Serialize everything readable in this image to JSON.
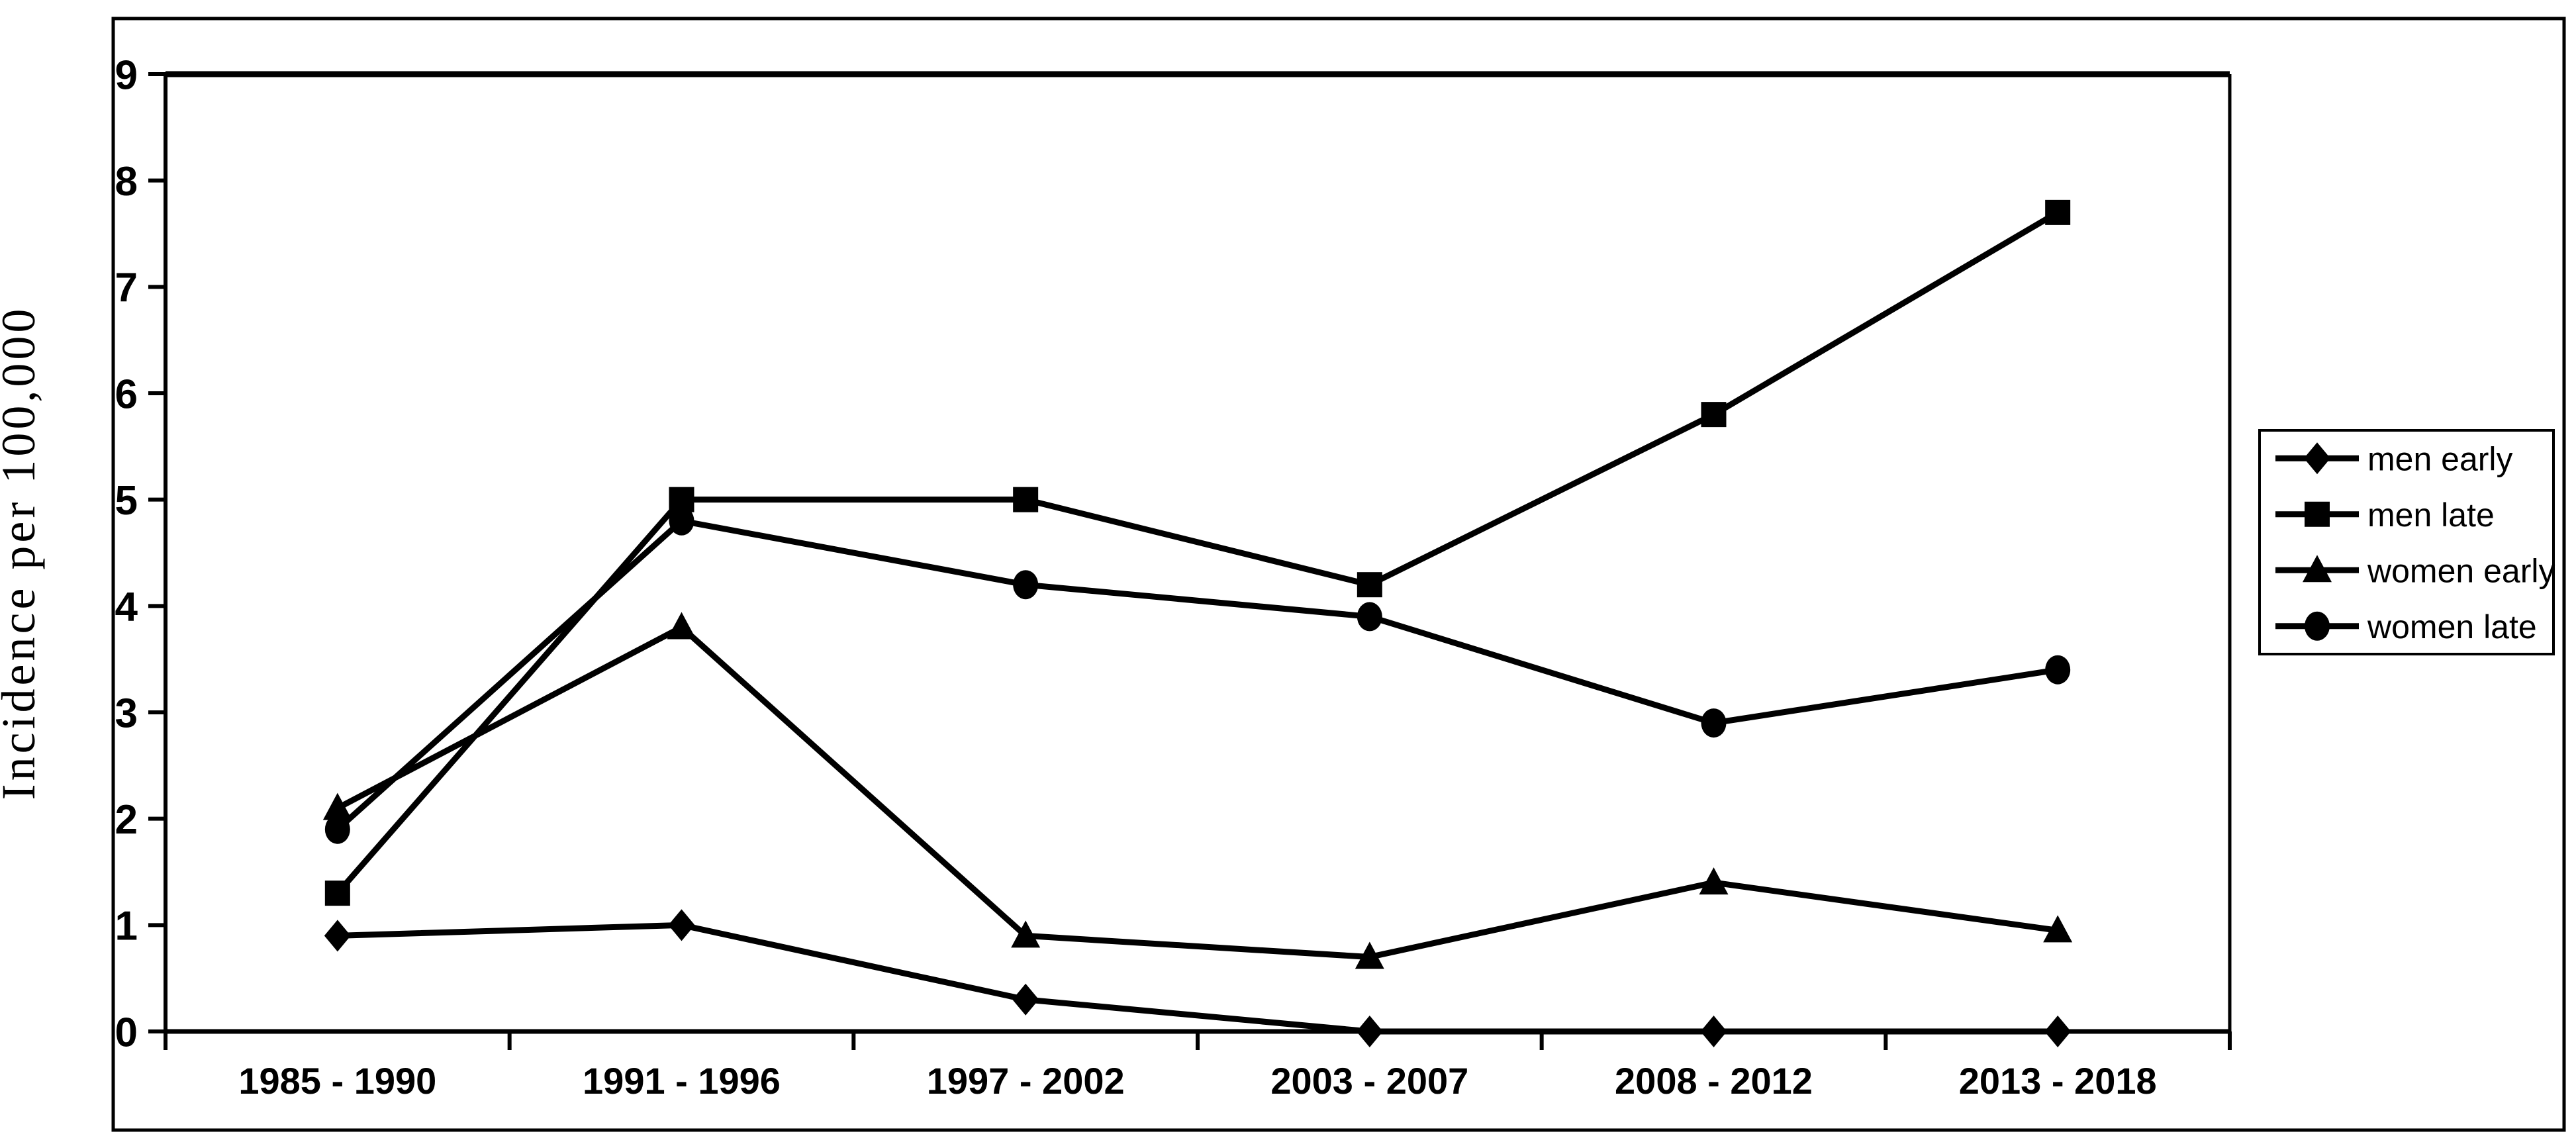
{
  "figure": {
    "background": "#ffffff",
    "border_color": "#000000",
    "line_color": "#000000",
    "text_color": "#000000"
  },
  "chart_data": {
    "type": "line",
    "title": "",
    "xlabel": "",
    "ylabel": "Incidence per 100,000",
    "categories": [
      "1985 - 1990",
      "1991 - 1996",
      "1997 - 2002",
      "2003 - 2007",
      "2008 - 2012",
      "2013 - 2018"
    ],
    "series": [
      {
        "name": "men early",
        "marker": "diamond",
        "color": "#000000",
        "values": [
          0.9,
          1.0,
          0.3,
          0.0,
          0.0,
          0.0
        ]
      },
      {
        "name": "men late",
        "marker": "square",
        "color": "#000000",
        "values": [
          1.3,
          5.0,
          5.0,
          4.2,
          5.8,
          7.7
        ]
      },
      {
        "name": "women early",
        "marker": "triangle",
        "color": "#000000",
        "values": [
          2.1,
          3.8,
          0.9,
          0.7,
          1.4,
          0.95
        ]
      },
      {
        "name": "women late",
        "marker": "circle",
        "color": "#000000",
        "values": [
          1.9,
          4.8,
          4.2,
          3.9,
          2.9,
          3.4
        ]
      }
    ],
    "ylim": [
      0,
      9
    ],
    "y_tick_labels": [
      "0",
      "1",
      "2",
      "3",
      "4",
      "5",
      "6",
      "7",
      "8",
      "9"
    ],
    "grid": false,
    "legend_position": "right"
  }
}
